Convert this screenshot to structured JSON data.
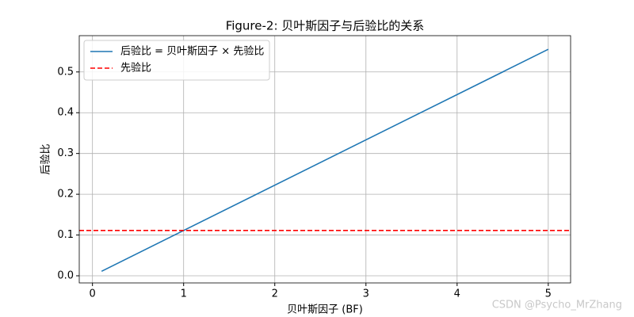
{
  "chart_data": {
    "type": "line",
    "title": "Figure-2: 贝叶斯因子与后验比的关系",
    "x_label": "贝叶斯因子 (BF)",
    "y_label": "后验比",
    "series": [
      {
        "name": "后验比 = 贝叶斯因子 × 先验比",
        "color": "#1f77b4",
        "x": [
          0.1,
          5
        ],
        "values": [
          0.0111,
          0.5556
        ]
      }
    ],
    "hlines": [
      {
        "name": "先验比",
        "color": "#ff0000",
        "value": 0.1111,
        "style": "dashed"
      }
    ],
    "xlim": [
      -0.145,
      5.245
    ],
    "xticks": [
      0,
      1,
      2,
      3,
      4,
      5
    ],
    "ylim": [
      -0.0175,
      0.589
    ],
    "yticks": [
      {
        "value": 0,
        "label": "0.0"
      },
      0.1,
      0.2,
      0.3,
      0.4,
      0.5
    ],
    "grid": true,
    "legend": "upper left",
    "watermark": "CSDN @Psycho_MrZhang"
  }
}
